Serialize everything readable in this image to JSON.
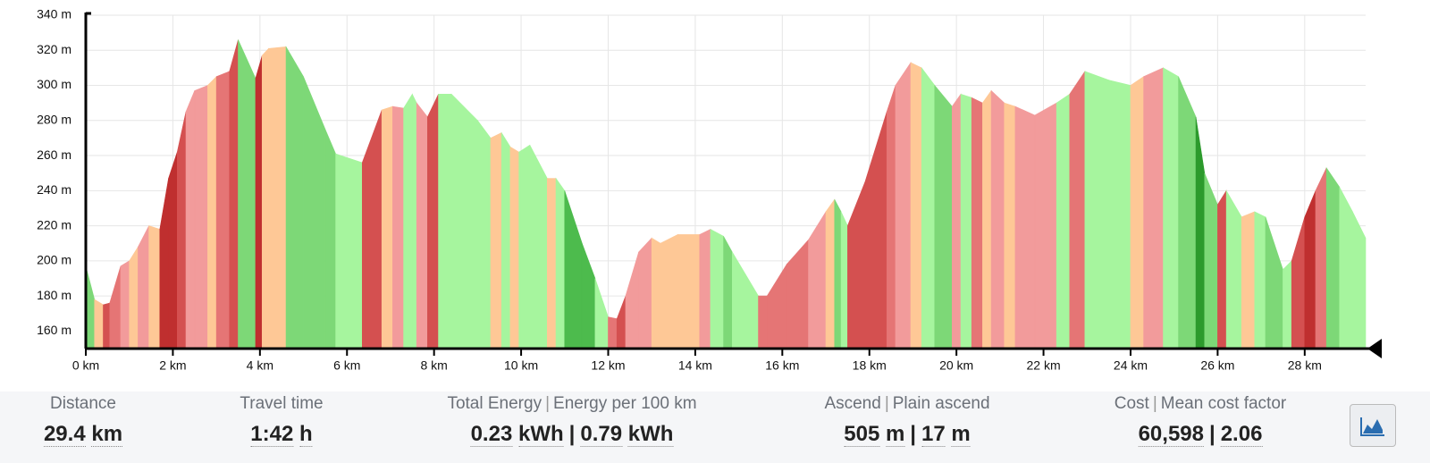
{
  "chart_data": {
    "type": "area",
    "x": [
      0.0,
      0.2,
      0.4,
      0.55,
      0.8,
      1.0,
      1.2,
      1.45,
      1.7,
      1.9,
      2.1,
      2.3,
      2.5,
      2.8,
      3.0,
      3.3,
      3.5,
      3.9,
      4.05,
      4.2,
      4.6,
      5.0,
      5.5,
      5.74,
      6.35,
      6.8,
      7.05,
      7.3,
      7.5,
      7.6,
      7.85,
      8.1,
      8.4,
      9.0,
      9.3,
      9.55,
      9.75,
      9.95,
      10.2,
      10.6,
      10.8,
      11.0,
      11.4,
      11.7,
      12.0,
      12.2,
      12.4,
      12.7,
      13.0,
      13.2,
      13.6,
      14.1,
      14.35,
      14.65,
      14.85,
      15.45,
      15.65,
      16.1,
      16.6,
      17.0,
      17.2,
      17.35,
      17.5,
      17.9,
      18.4,
      18.6,
      18.95,
      19.2,
      19.5,
      19.9,
      20.1,
      20.35,
      20.6,
      20.8,
      21.1,
      21.35,
      21.8,
      22.3,
      22.6,
      22.95,
      23.5,
      24.0,
      24.3,
      24.75,
      25.1,
      25.5,
      25.7,
      26.0,
      26.2,
      26.55,
      26.85,
      27.1,
      27.5,
      27.7,
      28.0,
      28.25,
      28.5,
      28.8,
      29.1,
      29.4
    ],
    "values": [
      197,
      178,
      175,
      176,
      197,
      200,
      208,
      220,
      218,
      247,
      262,
      285,
      297,
      300,
      305,
      308,
      326,
      304,
      317,
      321,
      322,
      305,
      275,
      261,
      256,
      286,
      288,
      287,
      295,
      290,
      282,
      295,
      295,
      280,
      270,
      273,
      265,
      262,
      266,
      247,
      247,
      240,
      210,
      190,
      168,
      167,
      180,
      205,
      213,
      210,
      215,
      215,
      218,
      214,
      205,
      180,
      180,
      198,
      212,
      228,
      235,
      228,
      220,
      245,
      285,
      300,
      313,
      310,
      300,
      288,
      295,
      293,
      290,
      297,
      290,
      288,
      283,
      290,
      295,
      308,
      303,
      300,
      305,
      310,
      305,
      282,
      250,
      232,
      240,
      225,
      228,
      225,
      195,
      200,
      225,
      240,
      253,
      242,
      228,
      213
    ],
    "colors": [
      "#7dd877",
      "#fec896",
      "#d45050",
      "#e57575",
      "#f29b9b",
      "#fec896",
      "#f29b9b",
      "#fec896",
      "#bf2f2f",
      "#bf2f2f",
      "#d45050",
      "#f29b9b",
      "#f29b9b",
      "#fec896",
      "#e57575",
      "#d45050",
      "#7dd877",
      "#bf2f2f",
      "#fec896",
      "#fec896",
      "#7dd877",
      "#7dd877",
      "#7dd877",
      "#a6f59e",
      "#d45050",
      "#fec896",
      "#f29b9b",
      "#a6f59e",
      "#a6f59e",
      "#f29b9b",
      "#d45050",
      "#a6f59e",
      "#a6f59e",
      "#a6f59e",
      "#fec896",
      "#a6f59e",
      "#fec896",
      "#a6f59e",
      "#a6f59e",
      "#fec896",
      "#a6f59e",
      "#4dbb4d",
      "#4dbb4d",
      "#a6f59e",
      "#e57575",
      "#d45050",
      "#f29b9b",
      "#f29b9b",
      "#fec896",
      "#fec896",
      "#fec896",
      "#f29b9b",
      "#a6f59e",
      "#7dd877",
      "#a6f59e",
      "#e57575",
      "#e57575",
      "#e57575",
      "#f29b9b",
      "#fec896",
      "#7dd877",
      "#a6f59e",
      "#d45050",
      "#d45050",
      "#e57575",
      "#f29b9b",
      "#fec896",
      "#a6f59e",
      "#7dd877",
      "#f29b9b",
      "#a6f59e",
      "#e57575",
      "#fec896",
      "#f29b9b",
      "#fec896",
      "#f29b9b",
      "#f29b9b",
      "#a6f59e",
      "#e57575",
      "#a6f59e",
      "#a6f59e",
      "#fec896",
      "#f29b9b",
      "#a6f59e",
      "#7dd877",
      "#2c9a2c",
      "#7dd877",
      "#d45050",
      "#a6f59e",
      "#fec896",
      "#a6f59e",
      "#7dd877",
      "#a6f59e",
      "#d45050",
      "#bf2f2f",
      "#e57575",
      "#7dd877",
      "#a6f59e",
      "#a6f59e"
    ],
    "xlim": [
      0,
      29.4
    ],
    "ylim": [
      150,
      340
    ],
    "xticks": [
      {
        "value": 0,
        "label": "0 km"
      },
      {
        "value": 2,
        "label": "2 km"
      },
      {
        "value": 4,
        "label": "4 km"
      },
      {
        "value": 6,
        "label": "6 km"
      },
      {
        "value": 8,
        "label": "8 km"
      },
      {
        "value": 10,
        "label": "10 km"
      },
      {
        "value": 12,
        "label": "12 km"
      },
      {
        "value": 14,
        "label": "14 km"
      },
      {
        "value": 16,
        "label": "16 km"
      },
      {
        "value": 18,
        "label": "18 km"
      },
      {
        "value": 20,
        "label": "20 km"
      },
      {
        "value": 22,
        "label": "22 km"
      },
      {
        "value": 24,
        "label": "24 km"
      },
      {
        "value": 26,
        "label": "26 km"
      },
      {
        "value": 28,
        "label": "28 km"
      }
    ],
    "yticks": [
      {
        "value": 160,
        "label": "160 m"
      },
      {
        "value": 180,
        "label": "180 m"
      },
      {
        "value": 200,
        "label": "200 m"
      },
      {
        "value": 220,
        "label": "220 m"
      },
      {
        "value": 240,
        "label": "240 m"
      },
      {
        "value": 260,
        "label": "260 m"
      },
      {
        "value": 280,
        "label": "280 m"
      },
      {
        "value": 300,
        "label": "300 m"
      },
      {
        "value": 320,
        "label": "320 m"
      },
      {
        "value": 340,
        "label": "340 m"
      }
    ],
    "grid": true
  },
  "stats": [
    {
      "labels": [
        "Distance"
      ],
      "values": [
        {
          "value": "29.4",
          "unit": "km"
        }
      ]
    },
    {
      "labels": [
        "Travel time"
      ],
      "values": [
        {
          "value": "1:42",
          "unit": "h"
        }
      ]
    },
    {
      "labels": [
        "Total Energy",
        "Energy per 100 km"
      ],
      "values": [
        {
          "value": "0.23",
          "unit": "kWh"
        },
        {
          "value": "0.79",
          "unit": "kWh"
        }
      ]
    },
    {
      "labels": [
        "Ascend",
        "Plain ascend"
      ],
      "values": [
        {
          "value": "505",
          "unit": "m"
        },
        {
          "value": "17",
          "unit": "m"
        }
      ]
    },
    {
      "labels": [
        "Cost",
        "Mean cost factor"
      ],
      "values": [
        {
          "value": "60,598"
        },
        {
          "value": "2.06"
        }
      ]
    }
  ]
}
